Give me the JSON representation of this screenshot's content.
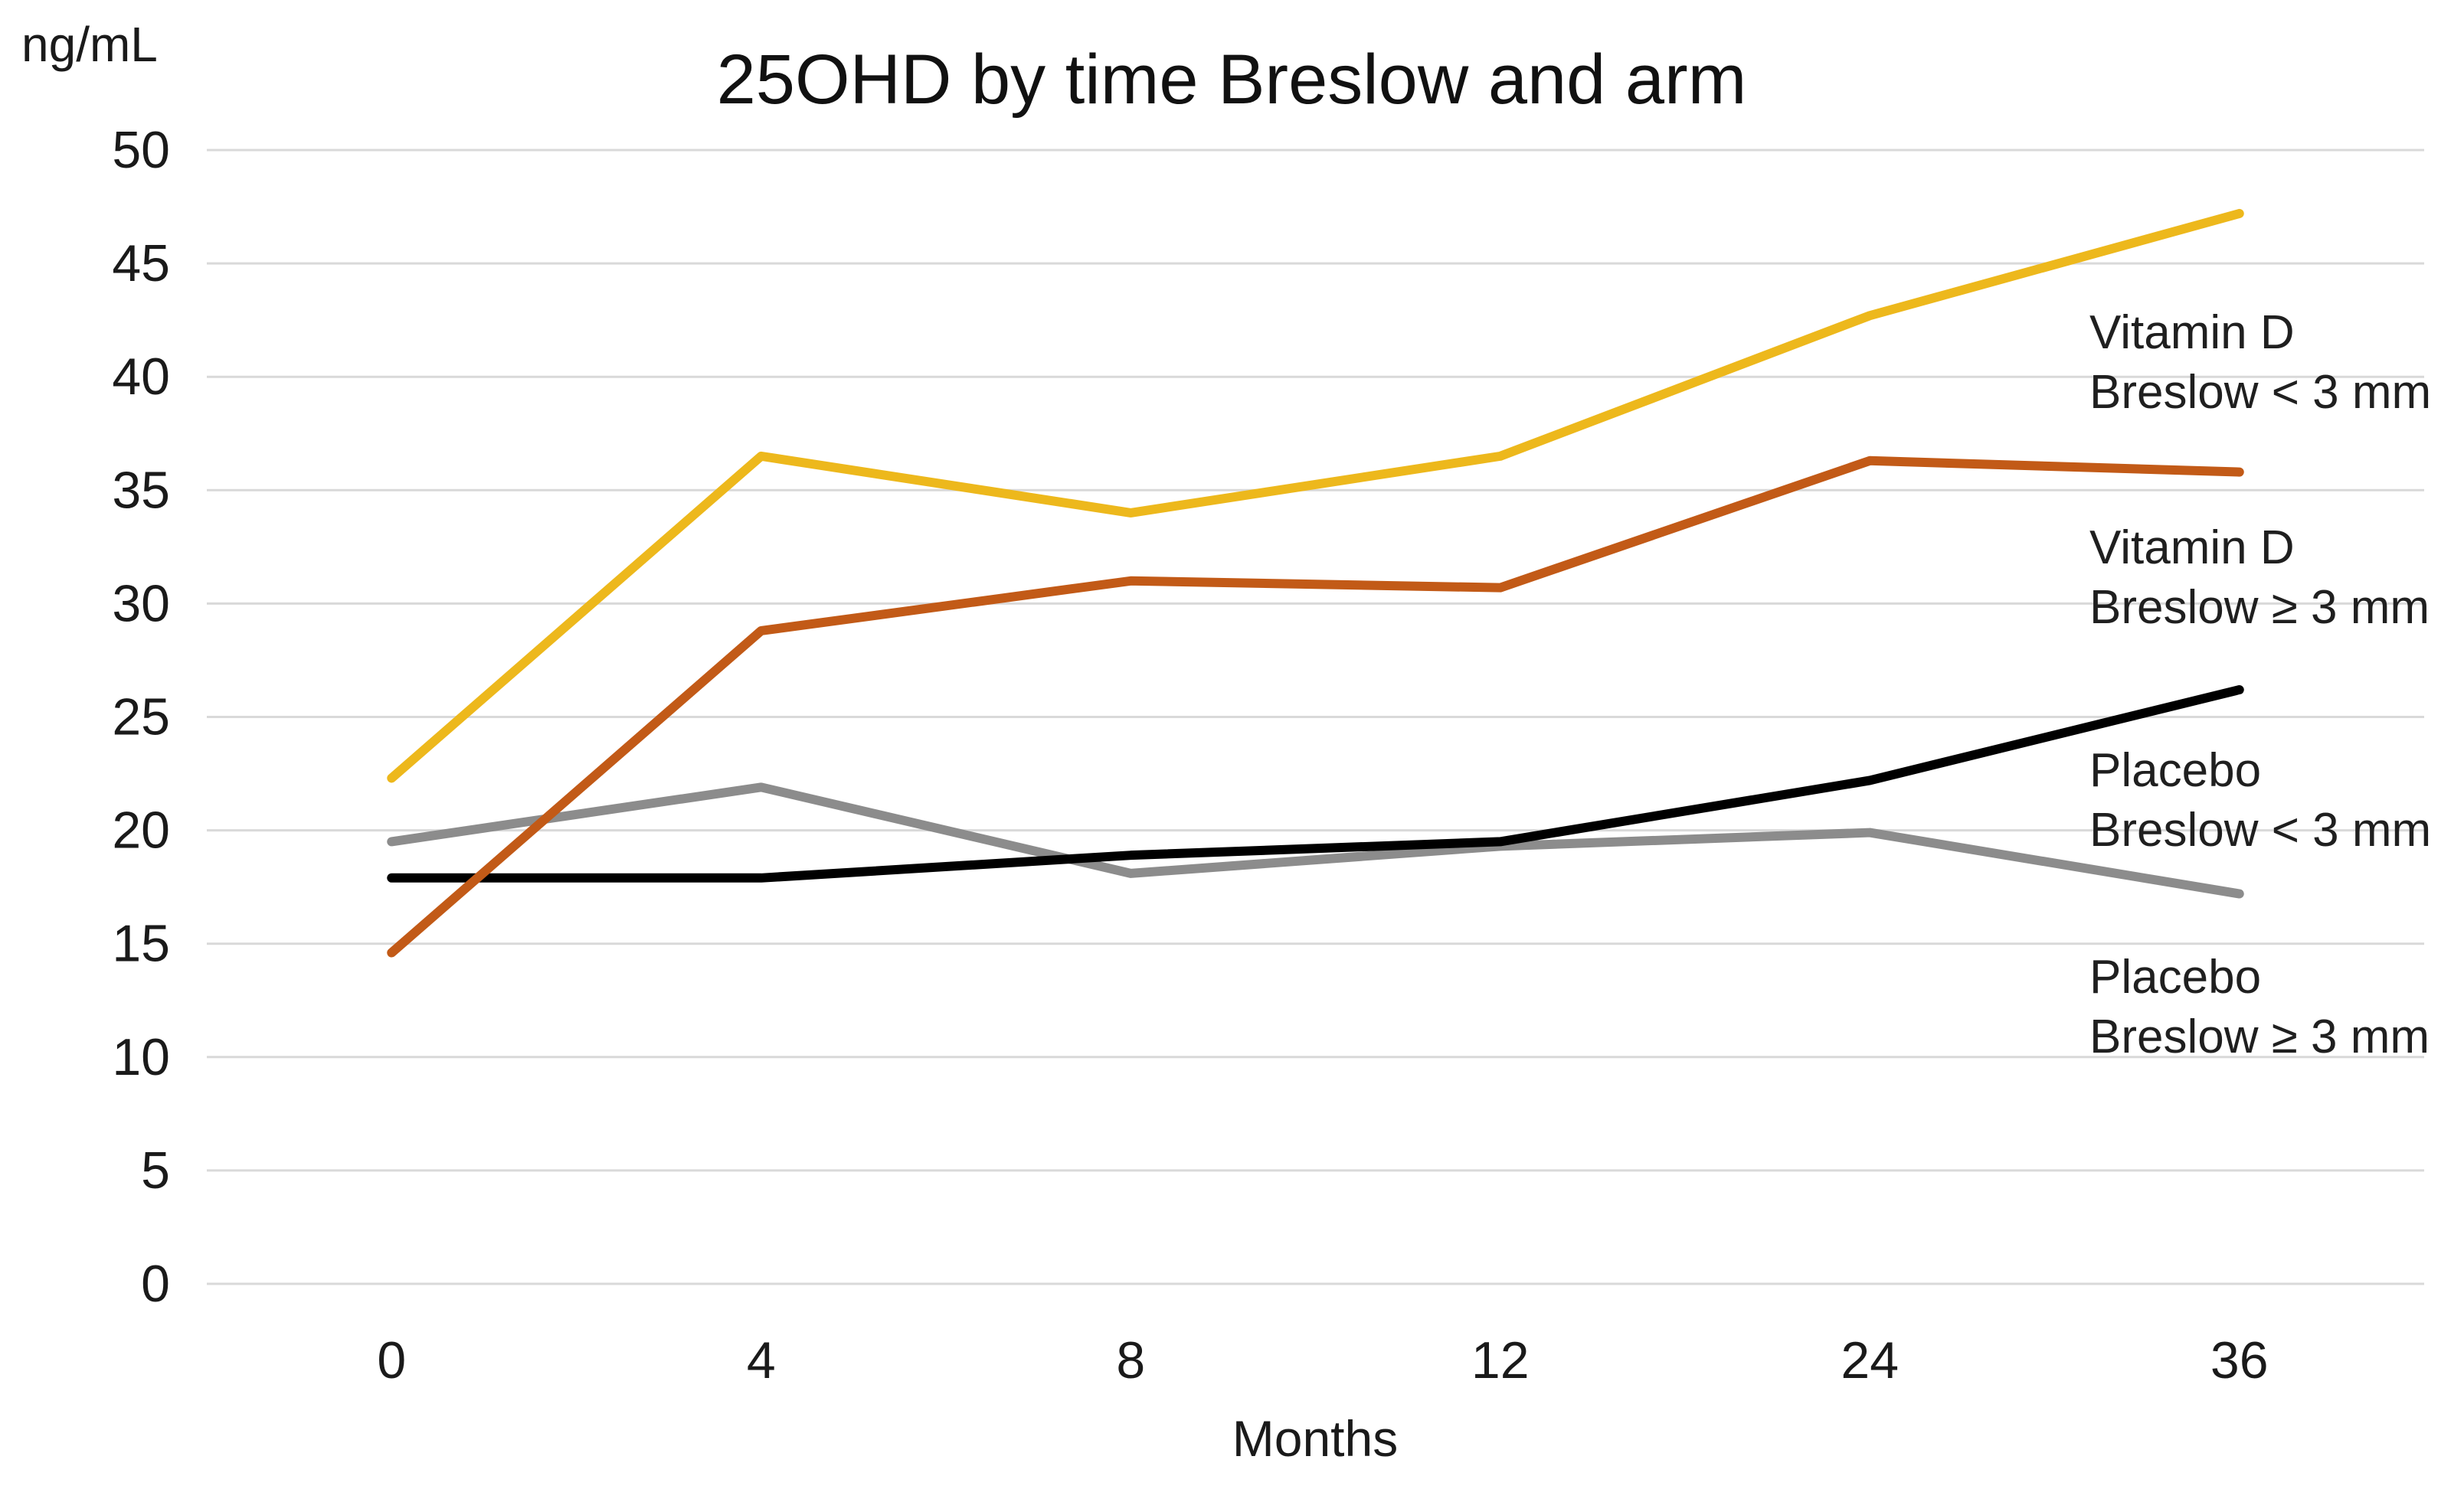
{
  "chart_data": {
    "type": "line",
    "title": "25OHD by time Breslow and arm",
    "xlabel": "Months",
    "ylabel": "ng/mL",
    "x_categories": [
      "0",
      "4",
      "8",
      "12",
      "24",
      "36"
    ],
    "yticks": [
      0,
      5,
      10,
      15,
      20,
      25,
      30,
      35,
      40,
      45,
      50
    ],
    "ylim": [
      0,
      50
    ],
    "grid": "horizontal",
    "gridline_color": "#d9d9d9",
    "legend_position": "right-inline-annotations",
    "series": [
      {
        "name": "Vitamin D Breslow < 3 mm",
        "label_lines": [
          "Vitamin D",
          "Breslow < 3 mm"
        ],
        "color": "#edb81c",
        "values": [
          22.3,
          36.5,
          34.0,
          36.5,
          42.7,
          47.2
        ]
      },
      {
        "name": "Vitamin D Breslow ≥ 3 mm",
        "label_lines": [
          "Vitamin D",
          "Breslow ≥ 3 mm"
        ],
        "color": "#c25a17",
        "values": [
          14.6,
          28.8,
          31.0,
          30.7,
          36.3,
          35.8
        ]
      },
      {
        "name": "Placebo Breslow < 3 mm",
        "label_lines": [
          "Placebo",
          "Breslow < 3 mm"
        ],
        "color": "#000000",
        "values": [
          17.9,
          17.9,
          18.9,
          19.5,
          22.2,
          26.2
        ]
      },
      {
        "name": "Placebo Breslow ≥ 3 mm",
        "label_lines": [
          "Placebo",
          "Breslow ≥ 3 mm"
        ],
        "color": "#8c8c8c",
        "values": [
          19.5,
          21.9,
          18.1,
          19.3,
          19.9,
          17.2
        ]
      }
    ]
  }
}
